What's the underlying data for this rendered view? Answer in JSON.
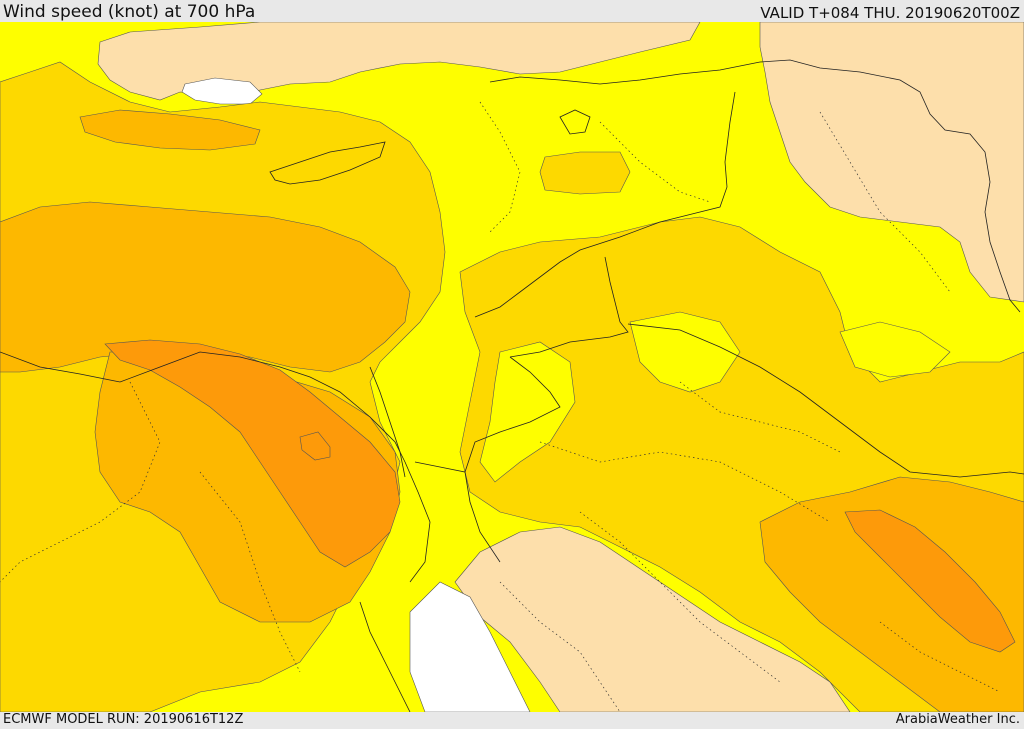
{
  "header": {
    "title": "Wind speed (knot) at 700 hPa",
    "valid_time": "VALID T+084 THU. 20190620T00Z"
  },
  "footer": {
    "model_run": "ECMWF MODEL RUN: 20190616T12Z",
    "provider": "ArabiaWeather Inc."
  },
  "colors": {
    "calm": "#fddfab",
    "light": "#fefe00",
    "moderate": "#fdd900",
    "fresh": "#fdb800",
    "strong": "#fd9a0a",
    "background": "#e8e8e8",
    "water": "#ffffff"
  }
}
